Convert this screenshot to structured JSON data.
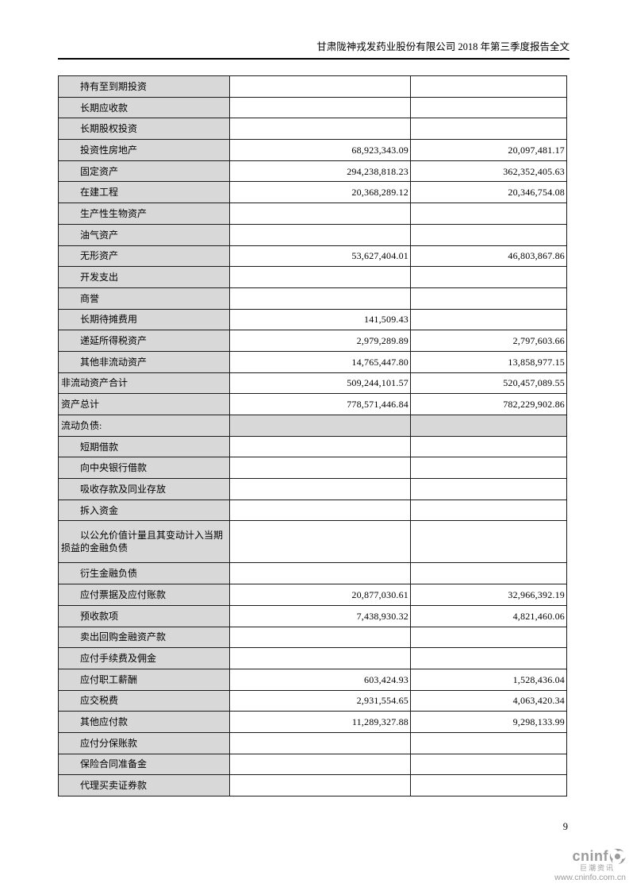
{
  "page": {
    "header_title": "甘肃陇神戎发药业股份有限公司 2018 年第三季度报告全文",
    "page_number": "9"
  },
  "colors": {
    "label_column_bg": "#d8d8d8",
    "section_row_bg": "#d8d8d8",
    "table_border": "#1a1a1a",
    "logo_gray": "#9b9b9b"
  },
  "footer_logo": {
    "brand": "cninf",
    "swirl_icon": "cninfo-swirl-icon",
    "chinese_name": "巨潮资讯",
    "url": "www.cninfo.com.cn"
  },
  "table": {
    "rows": [
      {
        "label": "持有至到期投资",
        "indent": true,
        "v1": "",
        "v2": ""
      },
      {
        "label": "长期应收款",
        "indent": true,
        "v1": "",
        "v2": ""
      },
      {
        "label": "长期股权投资",
        "indent": true,
        "v1": "",
        "v2": ""
      },
      {
        "label": "投资性房地产",
        "indent": true,
        "v1": "68,923,343.09",
        "v2": "20,097,481.17"
      },
      {
        "label": "固定资产",
        "indent": true,
        "v1": "294,238,818.23",
        "v2": "362,352,405.63"
      },
      {
        "label": "在建工程",
        "indent": true,
        "v1": "20,368,289.12",
        "v2": "20,346,754.08"
      },
      {
        "label": "生产性生物资产",
        "indent": true,
        "v1": "",
        "v2": ""
      },
      {
        "label": "油气资产",
        "indent": true,
        "v1": "",
        "v2": ""
      },
      {
        "label": "无形资产",
        "indent": true,
        "v1": "53,627,404.01",
        "v2": "46,803,867.86"
      },
      {
        "label": "开发支出",
        "indent": true,
        "v1": "",
        "v2": ""
      },
      {
        "label": "商誉",
        "indent": true,
        "v1": "",
        "v2": ""
      },
      {
        "label": "长期待摊费用",
        "indent": true,
        "v1": "141,509.43",
        "v2": ""
      },
      {
        "label": "递延所得税资产",
        "indent": true,
        "v1": "2,979,289.89",
        "v2": "2,797,603.66"
      },
      {
        "label": "其他非流动资产",
        "indent": true,
        "v1": "14,765,447.80",
        "v2": "13,858,977.15"
      },
      {
        "label": "非流动资产合计",
        "indent": false,
        "v1": "509,244,101.57",
        "v2": "520,457,089.55"
      },
      {
        "label": "资产总计",
        "indent": false,
        "v1": "778,571,446.84",
        "v2": "782,229,902.86"
      },
      {
        "label": "流动负债:",
        "indent": false,
        "section": true,
        "v1": "",
        "v2": ""
      },
      {
        "label": "短期借款",
        "indent": true,
        "v1": "",
        "v2": ""
      },
      {
        "label": "向中央银行借款",
        "indent": true,
        "v1": "",
        "v2": ""
      },
      {
        "label": "吸收存款及同业存放",
        "indent": true,
        "v1": "",
        "v2": ""
      },
      {
        "label": "拆入资金",
        "indent": true,
        "v1": "",
        "v2": ""
      },
      {
        "label": "以公允价值计量且其变动计入当期损益的金融负债",
        "indent": true,
        "tall": true,
        "v1": "",
        "v2": ""
      },
      {
        "label": "衍生金融负债",
        "indent": true,
        "v1": "",
        "v2": ""
      },
      {
        "label": "应付票据及应付账款",
        "indent": true,
        "v1": "20,877,030.61",
        "v2": "32,966,392.19"
      },
      {
        "label": "预收款项",
        "indent": true,
        "v1": "7,438,930.32",
        "v2": "4,821,460.06"
      },
      {
        "label": "卖出回购金融资产款",
        "indent": true,
        "v1": "",
        "v2": ""
      },
      {
        "label": "应付手续费及佣金",
        "indent": true,
        "v1": "",
        "v2": ""
      },
      {
        "label": "应付职工薪酬",
        "indent": true,
        "v1": "603,424.93",
        "v2": "1,528,436.04"
      },
      {
        "label": "应交税费",
        "indent": true,
        "v1": "2,931,554.65",
        "v2": "4,063,420.34"
      },
      {
        "label": "其他应付款",
        "indent": true,
        "v1": "11,289,327.88",
        "v2": "9,298,133.99"
      },
      {
        "label": "应付分保账款",
        "indent": true,
        "v1": "",
        "v2": ""
      },
      {
        "label": "保险合同准备金",
        "indent": true,
        "v1": "",
        "v2": ""
      },
      {
        "label": "代理买卖证券款",
        "indent": true,
        "v1": "",
        "v2": ""
      }
    ]
  }
}
